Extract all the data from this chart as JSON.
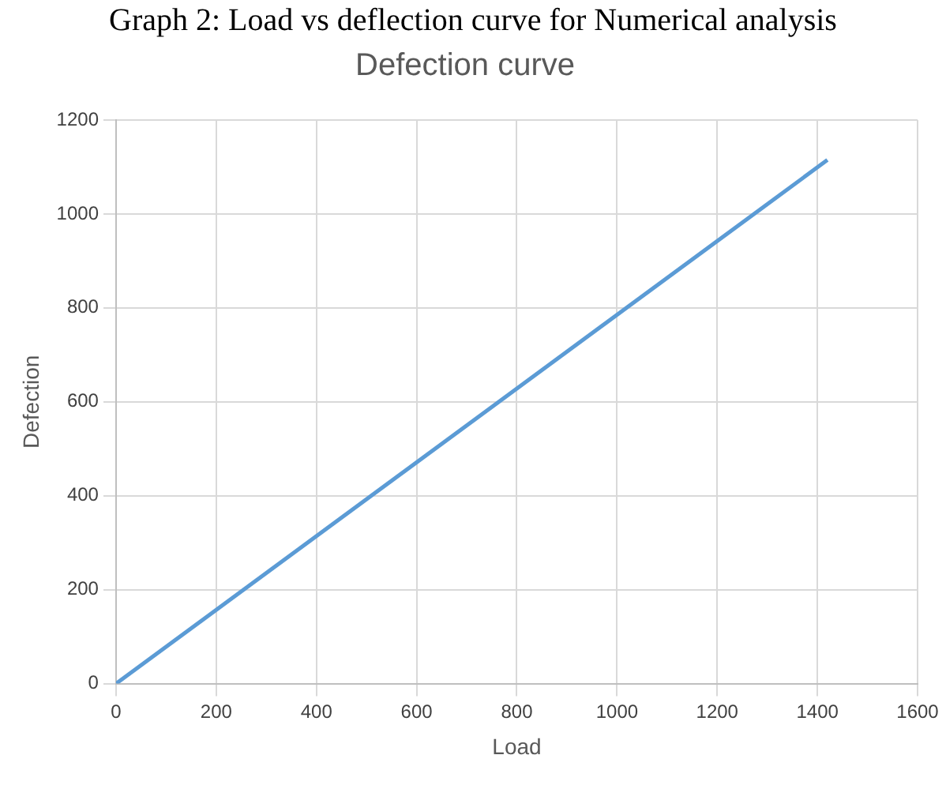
{
  "chart_data": {
    "type": "line",
    "title": "Defection curve",
    "xlabel": "Load",
    "ylabel": "Defection",
    "annotations": [
      "Graph 2: Load vs deflection curve for Numerical analysis"
    ],
    "x": [
      0,
      1420
    ],
    "series": [
      {
        "color": "#5b9bd5",
        "values": [
          0,
          1115
        ]
      }
    ],
    "xlim": [
      0,
      1600
    ],
    "xticks": [
      0,
      200,
      400,
      600,
      800,
      1000,
      1200,
      1400,
      1600
    ],
    "ylim": [
      0,
      1200
    ],
    "yticks": [
      0,
      200,
      400,
      600,
      800,
      1000,
      1200
    ],
    "grid": true,
    "legend": false,
    "marker": "none",
    "line_style": "solid"
  }
}
